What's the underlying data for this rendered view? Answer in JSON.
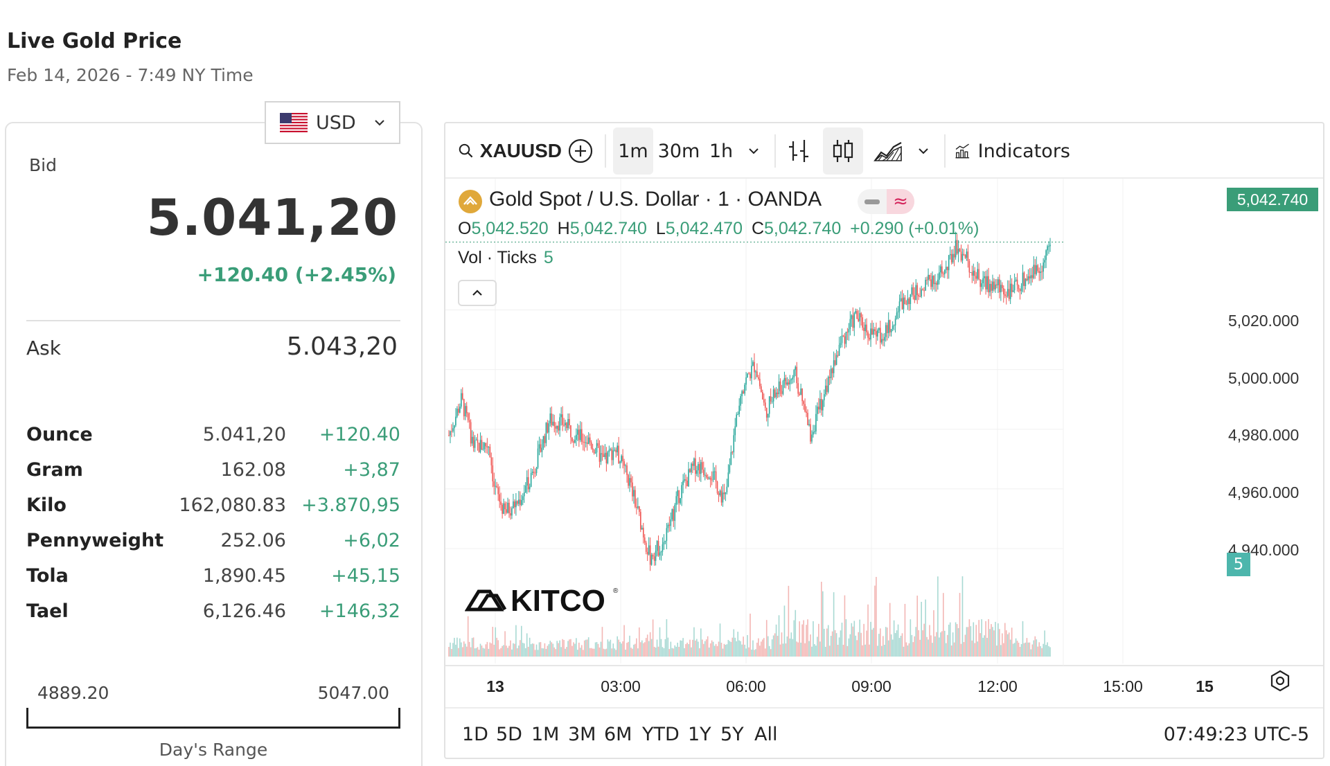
{
  "page": {
    "title": "Live Gold Price",
    "subtitle": "Feb 14, 2026 - 7:49 NY Time"
  },
  "currency": {
    "selected": "USD",
    "flag_icon": "us-flag-icon"
  },
  "price_card": {
    "bid_label": "Bid",
    "bid_value": "5.041,20",
    "bid_change": "+120.40 (+2.45%)",
    "ask_label": "Ask",
    "ask_value": "5.043,20",
    "units": [
      {
        "name": "Ounce",
        "price": "5.041,20",
        "change": "+120.40"
      },
      {
        "name": "Gram",
        "price": "162.08",
        "change": "+3,87"
      },
      {
        "name": "Kilo",
        "price": "162,080.83",
        "change": "+3.870,95"
      },
      {
        "name": "Pennyweight",
        "price": "252.06",
        "change": "+6,02"
      },
      {
        "name": "Tola",
        "price": "1,890.45",
        "change": "+45,15"
      },
      {
        "name": "Tael",
        "price": "6,126.46",
        "change": "+146,32"
      }
    ],
    "range_low": "4889.20",
    "range_high": "5047.00",
    "range_label": "Day's Range"
  },
  "chart_toolbar": {
    "symbol": "XAUUSD",
    "intervals": [
      "1m",
      "30m",
      "1h"
    ],
    "active_interval": "1m",
    "indicators_label": "Indicators"
  },
  "chart_legend": {
    "title": "Gold Spot / U.S. Dollar · 1 · OANDA",
    "o_key": "O",
    "o_val": "5,042.520",
    "h_key": "H",
    "h_val": "5,042.740",
    "l_key": "L",
    "l_val": "5,042.470",
    "c_key": "C",
    "c_val": "5,042.740",
    "change": "+0.290 (+0.01%)",
    "vol_label": "Vol · Ticks",
    "vol_value": "5",
    "last_price_tag": "5,042.740"
  },
  "chart_bottom": {
    "ranges": [
      "1D",
      "5D",
      "1M",
      "3M",
      "6M",
      "YTD",
      "1Y",
      "5Y",
      "All"
    ],
    "clock": "07:49:23 UTC-5"
  },
  "colors": {
    "up": "#26a69a",
    "down": "#ef5350",
    "accent": "#3a9d78"
  },
  "chart_data": {
    "type": "candlestick",
    "title": "Gold Spot / U.S. Dollar · 1 · OANDA",
    "x_tick_labels": [
      "13",
      "03:00",
      "06:00",
      "09:00",
      "12:00",
      "15:00",
      "15"
    ],
    "y_tick_labels": [
      "5,020.000",
      "5,000.000",
      "4,980.000",
      "4,960.000",
      "4,940.000"
    ],
    "ylim": [
      4927,
      5064
    ],
    "close_path": [
      [
        0,
        4978
      ],
      [
        0.25,
        4990
      ],
      [
        0.5,
        4974
      ],
      [
        0.8,
        4975
      ],
      [
        0.9,
        4961
      ],
      [
        1.1,
        4952
      ],
      [
        1.4,
        4956
      ],
      [
        1.6,
        4963
      ],
      [
        1.8,
        4972
      ],
      [
        2.0,
        4983
      ],
      [
        2.3,
        4982
      ],
      [
        2.5,
        4978
      ],
      [
        2.8,
        4976
      ],
      [
        3.1,
        4969
      ],
      [
        3.3,
        4974
      ],
      [
        3.6,
        4962
      ],
      [
        3.8,
        4950
      ],
      [
        4.0,
        4937
      ],
      [
        4.3,
        4943
      ],
      [
        4.6,
        4959
      ],
      [
        4.9,
        4968
      ],
      [
        5.2,
        4966
      ],
      [
        5.5,
        4956
      ],
      [
        5.8,
        4993
      ],
      [
        6.1,
        5002
      ],
      [
        6.3,
        4986
      ],
      [
        6.5,
        4992
      ],
      [
        6.9,
        4998
      ],
      [
        7.2,
        4978
      ],
      [
        7.5,
        4993
      ],
      [
        7.8,
        5009
      ],
      [
        8.1,
        5018
      ],
      [
        8.4,
        5012
      ],
      [
        8.7,
        5012
      ],
      [
        9.0,
        5022
      ],
      [
        9.3,
        5026
      ],
      [
        9.6,
        5030
      ],
      [
        9.9,
        5033
      ],
      [
        10.1,
        5042
      ],
      [
        10.3,
        5037
      ],
      [
        10.6,
        5029
      ],
      [
        10.9,
        5028
      ],
      [
        11.2,
        5026
      ],
      [
        11.5,
        5031
      ],
      [
        11.8,
        5035
      ],
      [
        12.0,
        5042
      ]
    ]
  }
}
